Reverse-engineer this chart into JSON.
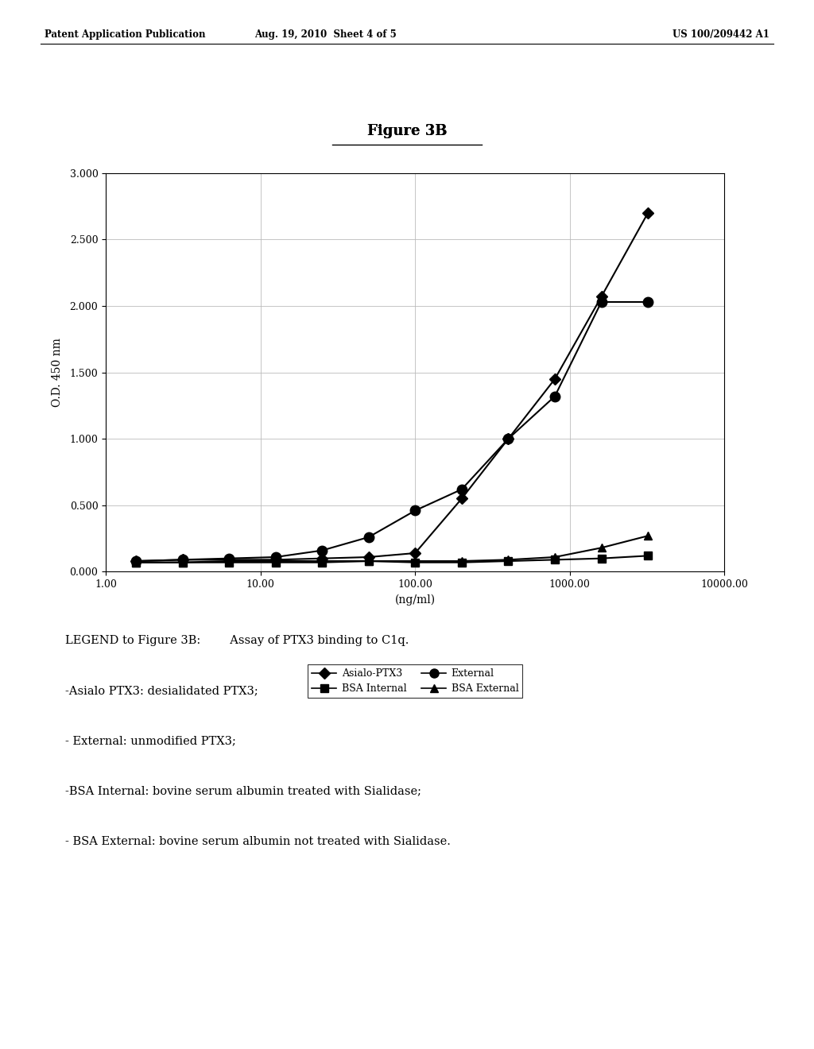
{
  "title": "Figure 3B",
  "xlabel": "(ng/ml)",
  "ylabel": "O.D. 450 nm",
  "header_left": "Patent Application Publication",
  "header_mid": "Aug. 19, 2010  Sheet 4 of 5",
  "header_right": "US 100/209442 A1",
  "xlim_log": [
    1.0,
    10000.0
  ],
  "ylim": [
    0.0,
    3.0
  ],
  "yticks": [
    0.0,
    0.5,
    1.0,
    1.5,
    2.0,
    2.5,
    3.0
  ],
  "series_order": [
    "Asialo-PTX3",
    "External",
    "BSA Internal",
    "BSA External"
  ],
  "series": {
    "Asialo-PTX3": {
      "x": [
        1.56,
        3.13,
        6.25,
        12.5,
        25.0,
        50.0,
        100.0,
        200.0,
        400.0,
        800.0,
        1600.0,
        3200.0
      ],
      "y": [
        0.08,
        0.09,
        0.09,
        0.09,
        0.1,
        0.11,
        0.14,
        0.55,
        1.0,
        1.45,
        2.07,
        2.7
      ],
      "marker": "D",
      "markersize": 7,
      "color": "#000000",
      "linestyle": "-",
      "linewidth": 1.5,
      "label": "Asialo-PTX3"
    },
    "External": {
      "x": [
        1.56,
        3.13,
        6.25,
        12.5,
        25.0,
        50.0,
        100.0,
        200.0,
        400.0,
        800.0,
        1600.0,
        3200.0
      ],
      "y": [
        0.08,
        0.09,
        0.1,
        0.11,
        0.16,
        0.26,
        0.46,
        0.62,
        1.0,
        1.32,
        2.03,
        2.03
      ],
      "marker": "o",
      "markersize": 9,
      "color": "#000000",
      "linestyle": "-",
      "linewidth": 1.5,
      "label": "External"
    },
    "BSA Internal": {
      "x": [
        1.56,
        3.13,
        6.25,
        12.5,
        25.0,
        50.0,
        100.0,
        200.0,
        400.0,
        800.0,
        1600.0,
        3200.0
      ],
      "y": [
        0.07,
        0.07,
        0.07,
        0.07,
        0.07,
        0.08,
        0.07,
        0.07,
        0.08,
        0.09,
        0.1,
        0.12
      ],
      "marker": "s",
      "markersize": 7,
      "color": "#000000",
      "linestyle": "-",
      "linewidth": 1.5,
      "label": "BSA Internal"
    },
    "BSA External": {
      "x": [
        1.56,
        3.13,
        6.25,
        12.5,
        25.0,
        50.0,
        100.0,
        200.0,
        400.0,
        800.0,
        1600.0,
        3200.0
      ],
      "y": [
        0.07,
        0.07,
        0.08,
        0.08,
        0.08,
        0.08,
        0.08,
        0.08,
        0.09,
        0.11,
        0.18,
        0.27
      ],
      "marker": "^",
      "markersize": 7,
      "color": "#000000",
      "linestyle": "-",
      "linewidth": 1.5,
      "label": "BSA External"
    }
  },
  "background_color": "#ffffff",
  "plot_bg_color": "#ffffff",
  "grid_color": "#bbbbbb",
  "text_color": "#000000",
  "legend_text_lines": [
    "LEGEND to Figure 3B:        Assay of PTX3 binding to C1q.",
    "-Asialo PTX3: desialidated PTX3;",
    "- External: unmodified PTX3;",
    "-BSA Internal: bovine serum albumin treated with Sialidase;",
    "- BSA External: bovine serum albumin not treated with Sialidase."
  ]
}
